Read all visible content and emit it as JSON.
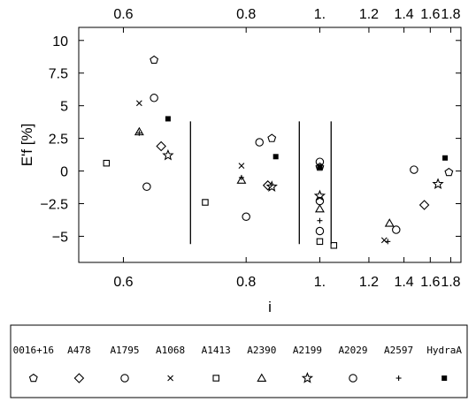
{
  "chart_data": {
    "type": "scatter",
    "xlabel": "i",
    "ylabel": "E'f [%]",
    "xlim": [
      0.55,
      1.92
    ],
    "ylim": [
      -7,
      11
    ],
    "x_scale": "reciprocal",
    "x_ticks": [
      0.6,
      0.8,
      1.0,
      1.2,
      1.4,
      1.6,
      1.8
    ],
    "x_tick_labels": [
      "0.6",
      "0.8",
      "1.",
      "1.2",
      "1.4",
      "1.6",
      "1.8"
    ],
    "y_ticks": [
      -5,
      -2.5,
      0,
      2.5,
      5,
      7.5,
      10
    ],
    "y_tick_labels": [
      "−5",
      "−2.5",
      "0",
      "2.5",
      "5",
      "7.5",
      "10"
    ],
    "grid": false,
    "top_axis_mirrored": true,
    "vertical_lines": [
      {
        "x": 0.695,
        "y_range": [
          -5.6,
          3.8
        ]
      },
      {
        "x": 0.935,
        "y_range": [
          -5.6,
          3.8
        ]
      },
      {
        "x": 1.04,
        "y_range": [
          -5.6,
          3.8
        ]
      }
    ],
    "series": [
      {
        "name": "0016+16",
        "marker": "pentagon",
        "points": [
          [
            0.64,
            8.5
          ],
          [
            0.86,
            2.5
          ],
          [
            1.0,
            0.3
          ],
          [
            1.78,
            -0.1
          ]
        ]
      },
      {
        "name": "A478",
        "marker": "diamond",
        "points": [
          [
            0.65,
            1.9
          ],
          [
            0.85,
            -1.1
          ],
          [
            1.55,
            -2.6
          ]
        ]
      },
      {
        "name": "A1795",
        "marker": "circle",
        "points": [
          [
            0.64,
            5.6
          ],
          [
            0.83,
            2.2
          ],
          [
            1.0,
            -4.6
          ],
          [
            1.47,
            0.1
          ]
        ]
      },
      {
        "name": "A1068",
        "marker": "cross",
        "points": [
          [
            0.62,
            5.2
          ],
          [
            0.79,
            0.4
          ],
          [
            1.28,
            -5.3
          ]
        ]
      },
      {
        "name": "A1413",
        "marker": "square",
        "points": [
          [
            0.58,
            0.6
          ],
          [
            0.72,
            -2.4
          ],
          [
            1.0,
            -5.4
          ],
          [
            1.05,
            -5.7
          ]
        ]
      },
      {
        "name": "A2390",
        "marker": "triangle",
        "points": [
          [
            0.62,
            3.0
          ],
          [
            0.79,
            -0.7
          ],
          [
            1.0,
            -2.9
          ],
          [
            1.31,
            -4.0
          ]
        ]
      },
      {
        "name": "A2199",
        "marker": "star",
        "points": [
          [
            0.66,
            1.2
          ],
          [
            0.86,
            -1.2
          ],
          [
            1.0,
            -1.9
          ],
          [
            1.67,
            -1.0
          ]
        ]
      },
      {
        "name": "A2029",
        "marker": "circle",
        "points": [
          [
            0.63,
            -1.2
          ],
          [
            0.8,
            -3.5
          ],
          [
            1.0,
            0.7
          ],
          [
            1.0,
            -2.3
          ],
          [
            1.35,
            -4.5
          ]
        ]
      },
      {
        "name": "A2597",
        "marker": "plus",
        "points": [
          [
            0.79,
            -0.5
          ],
          [
            1.0,
            -3.8
          ],
          [
            1.3,
            -5.4
          ],
          [
            0.62,
            2.9
          ]
        ]
      },
      {
        "name": "HydraA",
        "marker": "filled-square",
        "points": [
          [
            0.66,
            4.0
          ],
          [
            0.87,
            1.1
          ],
          [
            1.0,
            0.3
          ],
          [
            1.74,
            1.0
          ]
        ]
      }
    ]
  },
  "legend": {
    "items": [
      {
        "label": "0016+16",
        "marker": "pentagon"
      },
      {
        "label": "A478",
        "marker": "diamond"
      },
      {
        "label": "A1795",
        "marker": "circle"
      },
      {
        "label": "A1068",
        "marker": "cross"
      },
      {
        "label": "A1413",
        "marker": "square"
      },
      {
        "label": "A2390",
        "marker": "triangle"
      },
      {
        "label": "A2199",
        "marker": "star"
      },
      {
        "label": "A2029",
        "marker": "circle"
      },
      {
        "label": "A2597",
        "marker": "plus"
      },
      {
        "label": "HydraA",
        "marker": "filled-square"
      }
    ]
  },
  "colors": {
    "ink": "#000000",
    "background": "#ffffff"
  }
}
